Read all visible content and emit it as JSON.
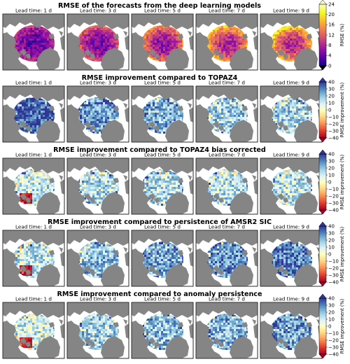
{
  "chart_data": {
    "type": "heatmap",
    "lead_times": [
      "Lead time: 1 d",
      "Lead time: 3 d",
      "Lead time: 5 d",
      "Lead time: 7 d",
      "Lead time: 9 d"
    ],
    "rows": [
      {
        "title": "RMSE of the forecasts from the deep learning models",
        "colorbar": {
          "label": "RMSE (%)",
          "ticks": [
            "0",
            "4",
            "8",
            "12",
            "16",
            "20",
            "24"
          ],
          "range": [
            0,
            24
          ],
          "cmap": "plasma",
          "colors": [
            "#0d0887",
            "#5d01a6",
            "#9c179e",
            "#cc4778",
            "#ed7953",
            "#fdb42f",
            "#f0f921",
            "#fffdc7"
          ]
        },
        "panel_means": [
          6,
          8,
          10,
          12,
          13
        ]
      },
      {
        "title": "RMSE improvement compared to TOPAZ4",
        "colorbar": {
          "label": "RMSE improvement (%)",
          "ticks": [
            "40",
            "30",
            "20",
            "10",
            "0",
            "−10",
            "−20",
            "−30",
            "−40"
          ],
          "range": [
            -40,
            40
          ],
          "cmap": "RdYlBu",
          "colors": [
            "#a50026",
            "#d73027",
            "#f46d43",
            "#fdae61",
            "#fee090",
            "#ffffbf",
            "#e0f3f8",
            "#abd9e9",
            "#74add1",
            "#4575b4",
            "#313695"
          ]
        },
        "panel_means": [
          35,
          25,
          22,
          17,
          16
        ]
      },
      {
        "title": "RMSE improvement compared to TOPAZ4 bias corrected",
        "colorbar": {
          "label": "RMSE improvement (%)",
          "ticks": [
            "40",
            "30",
            "20",
            "10",
            "0",
            "−10",
            "−20",
            "−30",
            "−40"
          ],
          "range": [
            -40,
            40
          ],
          "cmap": "RdYlBu",
          "colors": [
            "#a50026",
            "#d73027",
            "#f46d43",
            "#fdae61",
            "#fee090",
            "#ffffbf",
            "#e0f3f8",
            "#abd9e9",
            "#74add1",
            "#4575b4",
            "#313695"
          ]
        },
        "panel_means": [
          12,
          14,
          15,
          14,
          13
        ]
      },
      {
        "title": "RMSE improvement compared to persistence of AMSR2 SIC",
        "colorbar": {
          "label": "RMSE improvement (%)",
          "ticks": [
            "40",
            "30",
            "20",
            "10",
            "0",
            "−10",
            "−20",
            "−30",
            "−40"
          ],
          "range": [
            -40,
            40
          ],
          "cmap": "RdYlBu",
          "colors": [
            "#a50026",
            "#d73027",
            "#f46d43",
            "#fdae61",
            "#fee090",
            "#ffffbf",
            "#e0f3f8",
            "#abd9e9",
            "#74add1",
            "#4575b4",
            "#313695"
          ]
        },
        "panel_means": [
          12,
          20,
          24,
          27,
          29
        ]
      },
      {
        "title": "RMSE improvement compared to anomaly persistence",
        "colorbar": {
          "label": "RMSE improvement (%)",
          "ticks": [
            "40",
            "30",
            "20",
            "10",
            "0",
            "−10",
            "−20",
            "−30",
            "−40"
          ],
          "range": [
            -40,
            40
          ],
          "cmap": "RdYlBu",
          "colors": [
            "#a50026",
            "#d73027",
            "#f46d43",
            "#fdae61",
            "#fee090",
            "#ffffbf",
            "#e0f3f8",
            "#abd9e9",
            "#74add1",
            "#4575b4",
            "#313695"
          ]
        },
        "panel_means": [
          10,
          17,
          20,
          22,
          24
        ]
      }
    ],
    "colors": {
      "land": "#858585",
      "ocean_background": "#ffffff"
    }
  }
}
